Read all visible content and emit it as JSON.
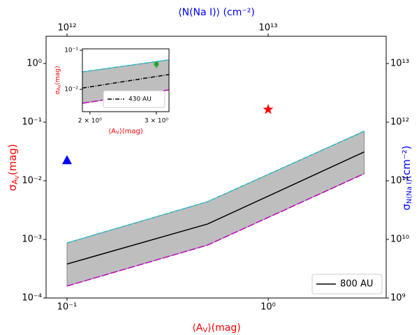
{
  "chart_data": [
    {
      "type": "line",
      "xlabel": [
        "⟨A",
        "V",
        "⟩(mag)"
      ],
      "ylabel": [
        "σ",
        "A",
        "V",
        "(mag)"
      ],
      "x2label": "⟨N(Na I)⟩ (cm⁻²)",
      "y2label": [
        "σ",
        "N(Na I)",
        "(cm⁻²)"
      ],
      "xscale": "log",
      "yscale": "log",
      "xlim": [
        0.0787,
        3.86
      ],
      "ylim": [
        0.0001,
        2.91
      ],
      "xticks": [
        {
          "value": 0.1,
          "label": "10⁻¹"
        },
        {
          "value": 1,
          "label": "10⁰"
        }
      ],
      "yticks": [
        {
          "value": 0.0001,
          "label": "10⁻⁴"
        },
        {
          "value": 0.001,
          "label": "10⁻³"
        },
        {
          "value": 0.01,
          "label": "10⁻²"
        },
        {
          "value": 0.1,
          "label": "10⁻¹"
        },
        {
          "value": 1,
          "label": "10⁰"
        }
      ],
      "x2lim": [
        787000000000,
        38600000000000
      ],
      "x2ticks": [
        {
          "value": 1000000000000,
          "label": "10¹²"
        },
        {
          "value": 10000000000000,
          "label": "10¹³"
        }
      ],
      "y2lim": [
        1000000000,
        29100000000000
      ],
      "y2ticks": [
        {
          "value": 1000000000,
          "label": "10⁹"
        },
        {
          "value": 10000000000,
          "label": "10¹⁰"
        },
        {
          "value": 100000000000,
          "label": "10¹¹"
        },
        {
          "value": 1000000000000,
          "label": "10¹²"
        },
        {
          "value": 10000000000000,
          "label": "10¹³"
        }
      ],
      "band_color": "#bebebe",
      "x": [
        0.1,
        0.5,
        3.0
      ],
      "series": [
        {
          "color": "#17becf",
          "dash": "6 3",
          "values": [
            0.00087,
            0.0044,
            0.07
          ]
        },
        {
          "color": "#bf00bf",
          "dash": "10 3",
          "values": [
            0.00016,
            0.0008,
            0.0132
          ]
        },
        {
          "name": "800 AU",
          "color": "#000000",
          "values": [
            0.00038,
            0.00183,
            0.031
          ]
        }
      ],
      "markers": [
        {
          "x": 0.1,
          "value": 0.022,
          "color": "#0000ff",
          "marker": "triangle"
        },
        {
          "x": 1.0,
          "value": 0.164,
          "color": "#ff0000",
          "marker": "star"
        }
      ],
      "legend_loc": "lower right"
    },
    {
      "type": "line",
      "xlabel": [
        "⟨A",
        "V",
        "⟩(mag)"
      ],
      "ylabel": [
        "σ",
        "A",
        "V",
        "(mag)"
      ],
      "xscale": "log",
      "yscale": "log",
      "xlim": [
        1.91,
        3.24
      ],
      "ylim": [
        0.00268,
        0.109
      ],
      "xticks": [
        {
          "value": 2,
          "label": "2 × 10⁰"
        },
        {
          "value": 3,
          "label": "3 × 10⁰"
        }
      ],
      "yticks": [
        {
          "value": 0.01,
          "label": "10⁻²"
        },
        {
          "value": 0.1,
          "label": "10⁻¹"
        }
      ],
      "band_color": "#bebebe",
      "x": [
        1.91,
        3.24
      ],
      "series": [
        {
          "color": "#17becf",
          "dash": "6 3",
          "values": [
            0.028,
            0.057
          ]
        },
        {
          "color": "#bf00bf",
          "dash": "10 3",
          "values": [
            0.0044,
            0.0097
          ]
        },
        {
          "name": "430 AU",
          "color": "#000000",
          "dash": "6 2 1 2",
          "values": [
            0.0108,
            0.024
          ]
        }
      ],
      "markers": [
        {
          "x": 3.0,
          "value": 0.044,
          "yerr": 0.009,
          "color": "#2ca02c",
          "marker": "circle"
        }
      ],
      "legend_loc": "lower right"
    }
  ]
}
